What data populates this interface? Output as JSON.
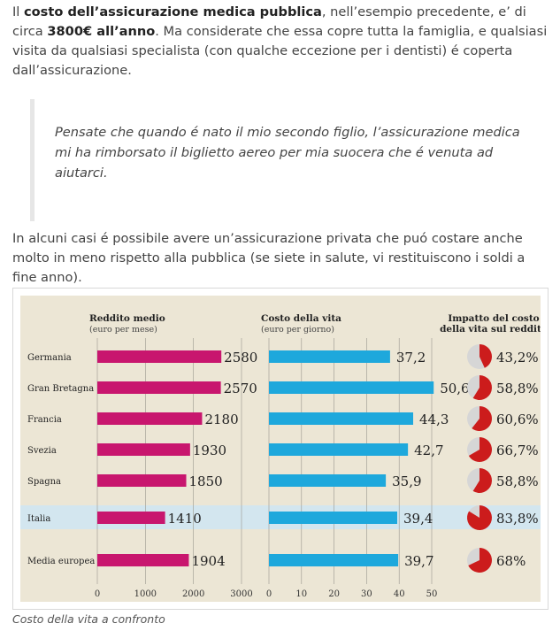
{
  "article": {
    "p1": {
      "a": "Il ",
      "b1": "costo dell’assicurazione medica pubblica",
      "c": ", nell’esempio precedente, e’ di circa ",
      "b2": "3800€ all’anno",
      "d": ". Ma considerate che essa copre tutta la famiglia, e qualsiasi visita da qualsiasi specialista (con qualche eccezione per i dentisti) é coperta dall’assicurazione."
    },
    "quote": "Pensate che quando é nato il mio secondo figlio, l’assicurazione medica mi ha rimborsato il biglietto aereo per mia suocera che é venuta ad aiutarci.",
    "p3": "In alcuni casi é possibile avere un’assicurazione privata che puó costare anche molto in meno rispetto alla pubblica (se siete in salute, vi restituiscono i soldi a fine anno).",
    "caption": "Costo della vita a confronto"
  },
  "colors": {
    "panel_bg": "#ece6d5",
    "bar_income": "#c8166e",
    "bar_cost": "#1ea8dc",
    "pie_fill": "#cc1c1c",
    "pie_rest": "#d6d6d6",
    "highlight_row": "#d3e6ef"
  },
  "chart_data": {
    "type": "bar",
    "categories": [
      "Germania",
      "Gran Bretagna",
      "Francia",
      "Svezia",
      "Spagna",
      "Italia",
      "Media europea"
    ],
    "highlight": "Italia",
    "series": [
      {
        "name": "Reddito medio",
        "subtitle": "(euro per mese)",
        "values": [
          2580,
          2570,
          2180,
          1930,
          1850,
          1410,
          1904
        ],
        "labels": [
          "2580",
          "2570",
          "2180",
          "1930",
          "1850",
          "1410",
          "1904"
        ],
        "xlim": [
          0,
          3000
        ],
        "ticks": [
          "0",
          "1000",
          "2000",
          "3000"
        ],
        "tick_values": [
          0,
          1000,
          2000,
          3000
        ]
      },
      {
        "name": "Costo della vita",
        "subtitle": "(euro per giorno)",
        "values": [
          37.2,
          50.6,
          44.3,
          42.7,
          35.9,
          39.4,
          39.7
        ],
        "labels": [
          "37,2",
          "50,6",
          "44,3",
          "42,7",
          "35,9",
          "39,4",
          "39,7"
        ],
        "xlim": [
          0,
          50
        ],
        "ticks": [
          "0",
          "10",
          "20",
          "30",
          "40",
          "50"
        ],
        "tick_values": [
          0,
          10,
          20,
          30,
          40,
          50
        ]
      },
      {
        "name": "Impatto del costo della vita sul reddito",
        "name_line1": "Impatto del costo",
        "name_line2": "della vita sul reddito",
        "type": "pie",
        "values": [
          43.2,
          58.8,
          60.6,
          66.7,
          58.8,
          83.8,
          68
        ],
        "labels": [
          "43,2%",
          "58,8%",
          "60,6%",
          "66,7%",
          "58,8%",
          "83,8%",
          "68%"
        ]
      }
    ]
  }
}
